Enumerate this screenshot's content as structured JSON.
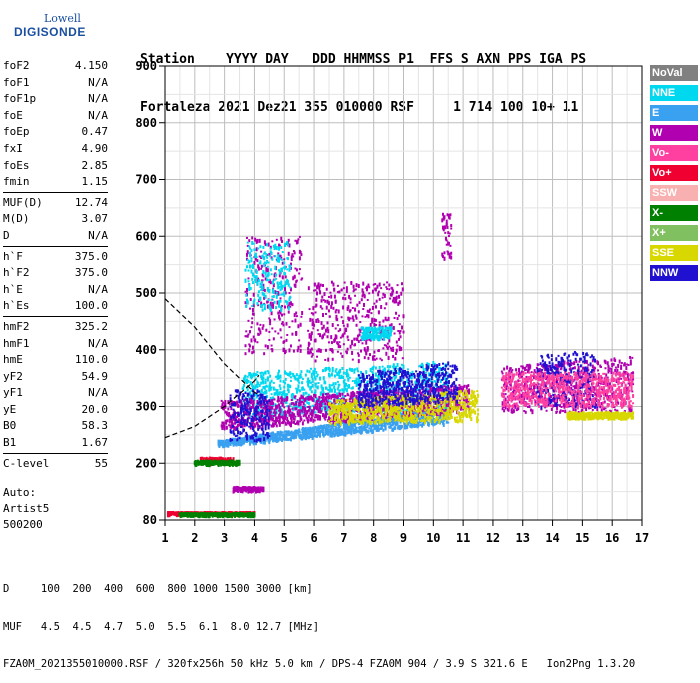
{
  "logo": {
    "line1": "Lowell",
    "line2": "DIGISONDE"
  },
  "header": {
    "line1": "Station    YYYY DAY   DDD HHMMSS P1  FFS S AXN PPS IGA PS",
    "line2": "Fortaleza 2021 Dez21 355 010000 RSF     1 714 100 10+ 11"
  },
  "params": [
    [
      {
        "label": "foF2",
        "value": "4.150"
      },
      {
        "label": "foF1",
        "value": "N/A"
      },
      {
        "label": "foF1p",
        "value": "N/A"
      },
      {
        "label": "foE",
        "value": "N/A"
      },
      {
        "label": "foEp",
        "value": "0.47"
      },
      {
        "label": "fxI",
        "value": "4.90"
      },
      {
        "label": "foEs",
        "value": "2.85"
      },
      {
        "label": "fmin",
        "value": "1.15"
      }
    ],
    [
      {
        "label": "MUF(D)",
        "value": "12.74"
      },
      {
        "label": "M(D)",
        "value": "3.07"
      },
      {
        "label": "D",
        "value": "N/A"
      }
    ],
    [
      {
        "label": "h`F",
        "value": "375.0"
      },
      {
        "label": "h`F2",
        "value": "375.0"
      },
      {
        "label": "h`E",
        "value": "N/A"
      },
      {
        "label": "h`Es",
        "value": "100.0"
      }
    ],
    [
      {
        "label": "hmF2",
        "value": "325.2"
      },
      {
        "label": "hmF1",
        "value": "N/A"
      },
      {
        "label": "hmE",
        "value": "110.0"
      },
      {
        "label": "yF2",
        "value": "54.9"
      },
      {
        "label": "yF1",
        "value": "N/A"
      },
      {
        "label": "yE",
        "value": "20.0"
      },
      {
        "label": "B0",
        "value": "58.3"
      },
      {
        "label": "B1",
        "value": "1.67"
      }
    ],
    [
      {
        "label": "C-level",
        "value": "55"
      }
    ]
  ],
  "auto": {
    "line1": "Auto:",
    "line2": "Artist5",
    "line3": "500200"
  },
  "legend": [
    {
      "label": "NoVal",
      "color": "#808080"
    },
    {
      "label": "NNE",
      "color": "#00d8f0"
    },
    {
      "label": "E",
      "color": "#3aa0f0"
    },
    {
      "label": "W",
      "color": "#b000b0"
    },
    {
      "label": "Vo-",
      "color": "#ff40a0"
    },
    {
      "label": "Vo+",
      "color": "#f00030"
    },
    {
      "label": "SSW",
      "color": "#f8b0b0"
    },
    {
      "label": "X-",
      "color": "#008000"
    },
    {
      "label": "X+",
      "color": "#80c060"
    },
    {
      "label": "SSE",
      "color": "#d8d800"
    },
    {
      "label": "NNW",
      "color": "#2010d0"
    }
  ],
  "footer": {
    "line1": "D     100  200  400  600  800 1000 1500 3000 [km]",
    "line2": "MUF   4.5  4.5  4.7  5.0  5.5  6.1  8.0 12.7 [MHz]",
    "line3": "FZA0M_2021355010000.RSF / 320fx256h 50 kHz 5.0 km / DPS-4 FZA0M 904 / 3.9 S 321.6 E   Ion2Png 1.3.20"
  },
  "chart_data": {
    "type": "scatter",
    "x_ticks": [
      "1",
      "2",
      "3",
      "4",
      "5",
      "6",
      "7",
      "8",
      "9",
      "10",
      "11",
      "12",
      "13",
      "14",
      "15",
      "16",
      "17"
    ],
    "y_ticks": [
      "80",
      "200",
      "300",
      "400",
      "500",
      "600",
      "700",
      "800",
      "900"
    ],
    "xlim": [
      1,
      17
    ],
    "ylim": [
      80,
      900
    ],
    "grid": true,
    "legend_position": "right",
    "bands": [
      {
        "series": "E",
        "x": [
          2.8,
          10.5
        ],
        "y0": [
          230,
          270
        ],
        "y1": [
          240,
          300
        ]
      },
      {
        "series": "NNE",
        "x": [
          3.6,
          10.5
        ],
        "y0": [
          280,
          295
        ],
        "y1": [
          360,
          380
        ]
      },
      {
        "series": "W",
        "x": [
          2.9,
          11.2
        ],
        "y0": [
          260,
          290
        ],
        "y1": [
          310,
          340
        ]
      },
      {
        "series": "SSE",
        "x": [
          6.5,
          11.5
        ],
        "y0": [
          270,
          275
        ],
        "y1": [
          310,
          330
        ]
      },
      {
        "series": "NNW",
        "x": [
          7.5,
          10.8
        ],
        "y0": [
          300,
          310
        ],
        "y1": [
          360,
          380
        ]
      },
      {
        "series": "W",
        "x": [
          12.3,
          16.7
        ],
        "y0": [
          290,
          290
        ],
        "y1": [
          370,
          390
        ]
      },
      {
        "series": "NNW",
        "x": [
          13.5,
          15.5
        ],
        "y0": [
          300,
          300
        ],
        "y1": [
          390,
          400
        ]
      },
      {
        "series": "Vo-",
        "x": [
          12.3,
          16.7
        ],
        "y0": [
          300,
          300
        ],
        "y1": [
          360,
          360
        ]
      },
      {
        "series": "SSE",
        "x": [
          14.5,
          16.7
        ],
        "y0": [
          280,
          280
        ],
        "y1": [
          290,
          290
        ]
      },
      {
        "series": "W",
        "x": [
          3.7,
          5.6
        ],
        "y0": [
          390,
          390
        ],
        "y1": [
          600,
          600
        ]
      },
      {
        "series": "NNE",
        "x": [
          3.7,
          5.2
        ],
        "y0": [
          470,
          470
        ],
        "y1": [
          590,
          590
        ]
      },
      {
        "series": "W",
        "x": [
          5.8,
          9.0
        ],
        "y0": [
          380,
          380
        ],
        "y1": [
          520,
          520
        ]
      },
      {
        "series": "NNE",
        "x": [
          7.6,
          8.6
        ],
        "y0": [
          420,
          420
        ],
        "y1": [
          440,
          440
        ]
      },
      {
        "series": "W",
        "x": [
          10.3,
          10.6
        ],
        "y0": [
          560,
          560
        ],
        "y1": [
          640,
          640
        ]
      },
      {
        "series": "Vo+",
        "x": [
          2.2,
          3.3
        ],
        "y0": [
          200,
          200
        ],
        "y1": [
          210,
          210
        ]
      },
      {
        "series": "X-",
        "x": [
          2.0,
          3.5
        ],
        "y0": [
          198,
          198
        ],
        "y1": [
          205,
          205
        ]
      },
      {
        "series": "Vo+",
        "x": [
          1.1,
          4.0
        ],
        "y0": [
          92,
          92
        ],
        "y1": [
          97,
          97
        ]
      },
      {
        "series": "X-",
        "x": [
          1.5,
          4.0
        ],
        "y0": [
          90,
          90
        ],
        "y1": [
          95,
          95
        ]
      },
      {
        "series": "W",
        "x": [
          3.3,
          4.3
        ],
        "y0": [
          142,
          142
        ],
        "y1": [
          150,
          150
        ]
      },
      {
        "series": "NNW",
        "x": [
          3.2,
          4.5
        ],
        "y0": [
          240,
          240
        ],
        "y1": [
          330,
          330
        ]
      }
    ],
    "profile_curves": [
      {
        "points": [
          [
            1,
            490
          ],
          [
            2,
            440
          ],
          [
            3,
            375
          ],
          [
            4,
            325
          ],
          [
            4.15,
            320
          ]
        ]
      },
      {
        "points": [
          [
            1,
            245
          ],
          [
            2,
            265
          ],
          [
            3,
            300
          ],
          [
            4,
            345
          ],
          [
            4.15,
            355
          ]
        ]
      }
    ]
  }
}
